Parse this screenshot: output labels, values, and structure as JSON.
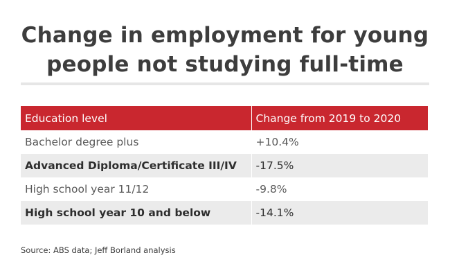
{
  "chart_data": {
    "type": "table",
    "title": "Change in employment for young people not studying full-time",
    "columns": [
      "Education level",
      "Change from 2019 to 2020"
    ],
    "rows": [
      {
        "level": "Bachelor degree plus",
        "change": "+10.4%",
        "value": 10.4
      },
      {
        "level": "Advanced Diploma/Certificate III/IV",
        "change": "-17.5%",
        "value": -17.5
      },
      {
        "level": "High school year 11/12",
        "change": "-9.8%",
        "value": -9.8
      },
      {
        "level": "High school year 10 and below",
        "change": "-14.1%",
        "value": -14.1
      }
    ],
    "source": "Source: ABS data; Jeff Borland analysis"
  },
  "colors": {
    "header": "#c9272f",
    "stripe": "#ebebeb",
    "rule": "#e6e6e6"
  }
}
